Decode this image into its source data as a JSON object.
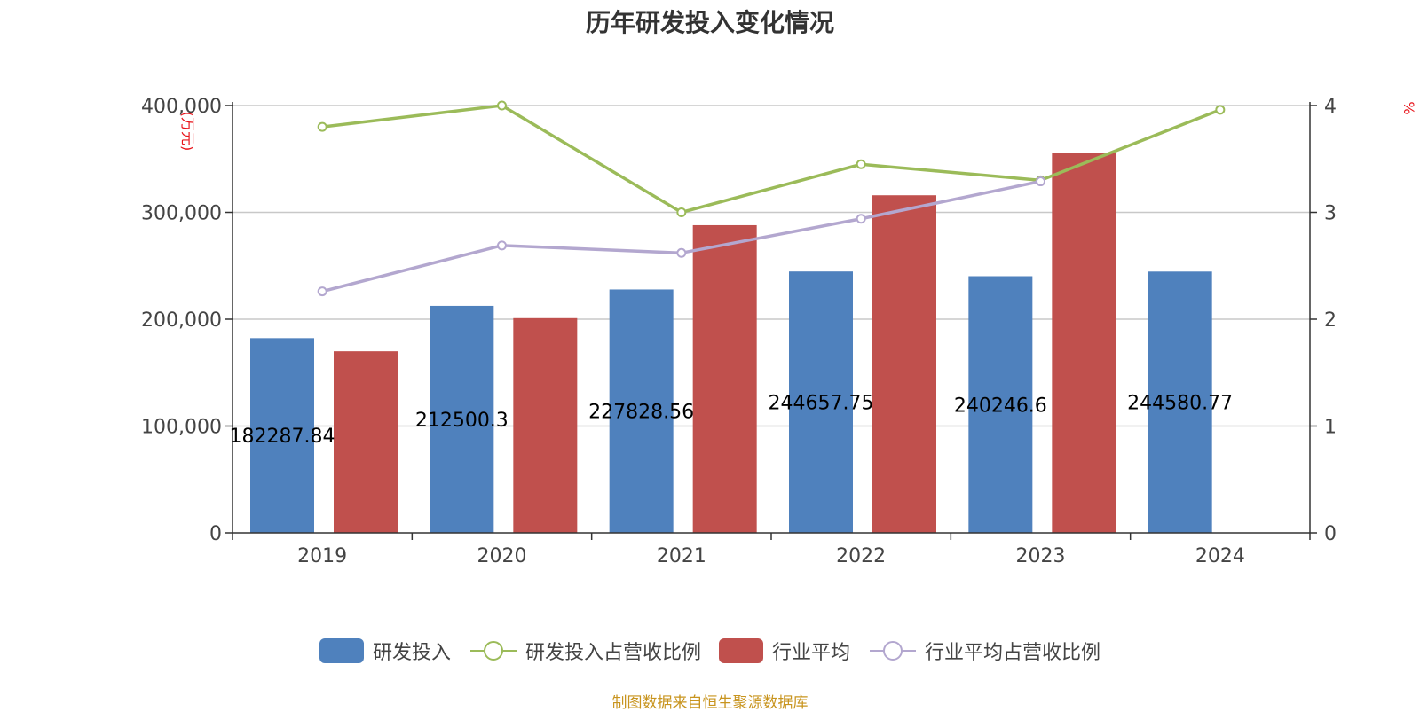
{
  "chart_data": {
    "type": "bar",
    "title": "历年研发投入变化情况",
    "categories": [
      "2019",
      "2020",
      "2021",
      "2022",
      "2023",
      "2024"
    ],
    "y_left": {
      "unit": "(万元)",
      "ylim": [
        0,
        400000
      ],
      "ticks": [
        0,
        100000,
        200000,
        300000,
        400000
      ],
      "tick_labels": [
        "0",
        "100,000",
        "200,000",
        "300,000",
        "400,000"
      ]
    },
    "y_right": {
      "unit": "%",
      "ylim": [
        0,
        4
      ],
      "ticks": [
        0,
        1,
        2,
        3,
        4
      ],
      "tick_labels": [
        "0",
        "1",
        "2",
        "3",
        "4"
      ]
    },
    "grid": true,
    "legend_position": "bottom",
    "series": [
      {
        "name": "研发投入",
        "type": "bar",
        "axis": "left",
        "color": "#4f81bd",
        "values": [
          182287.84,
          212500.3,
          227828.56,
          244657.75,
          240246.6,
          244580.77
        ],
        "data_labels": [
          "182287.84",
          "212500.3",
          "227828.56",
          "244657.75",
          "240246.6",
          "244580.77"
        ]
      },
      {
        "name": "研发投入占营收比例",
        "type": "line",
        "axis": "right",
        "color": "#9bbb59",
        "values": [
          3.8,
          4.0,
          3.0,
          3.45,
          3.3,
          3.96
        ]
      },
      {
        "name": "行业平均",
        "type": "bar",
        "axis": "left",
        "color": "#c0504d",
        "values": [
          170000,
          201000,
          288000,
          316000,
          356000,
          null
        ]
      },
      {
        "name": "行业平均占营收比例",
        "type": "line",
        "axis": "right",
        "color": "#b3a7cf",
        "values": [
          2.26,
          2.69,
          2.62,
          2.94,
          3.29,
          null
        ]
      }
    ]
  },
  "source_text": "制图数据来自恒生聚源数据库"
}
